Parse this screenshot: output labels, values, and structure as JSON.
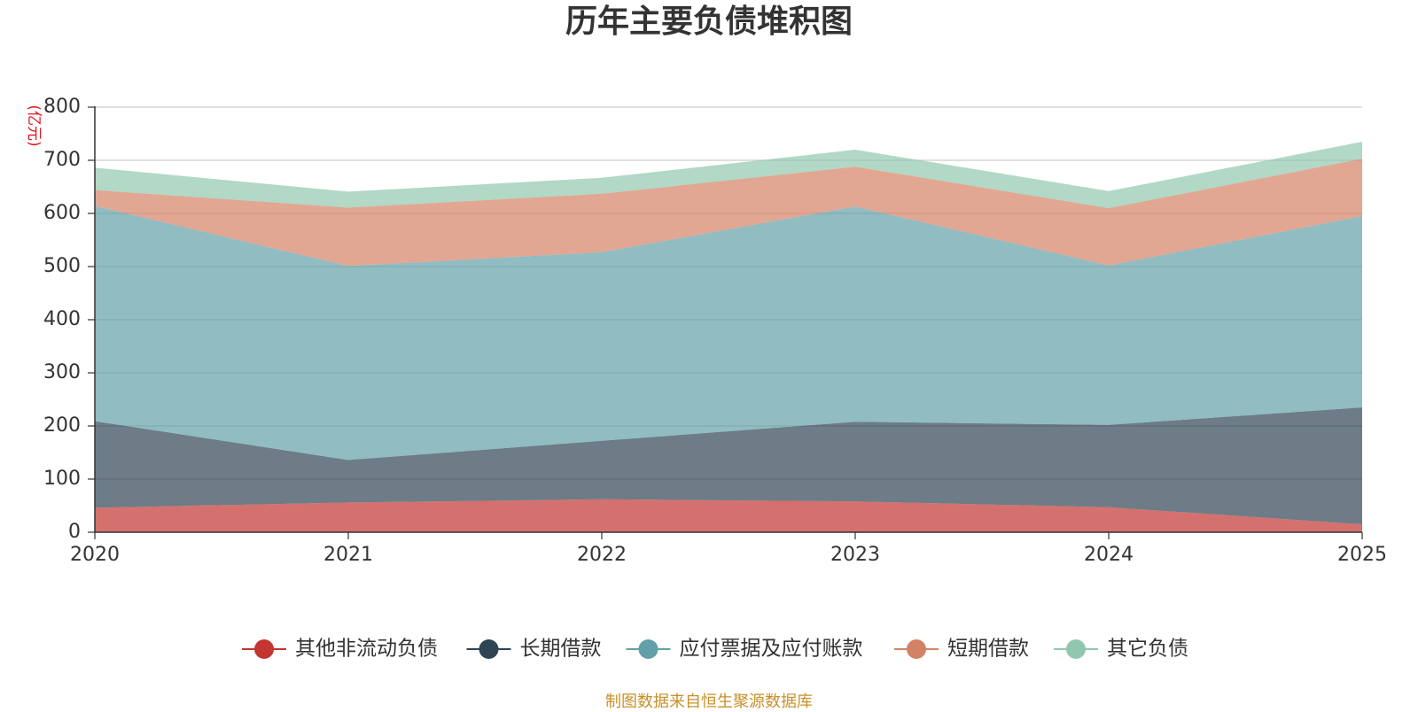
{
  "chart_data": {
    "type": "area",
    "stacked": true,
    "title": "历年主要负债堆积图",
    "unit_label": "(亿元)",
    "x": [
      "2020",
      "2021",
      "2022",
      "2023",
      "2024",
      "2025"
    ],
    "ylim": [
      0,
      800
    ],
    "yticks": [
      0,
      100,
      200,
      300,
      400,
      500,
      600,
      700,
      800
    ],
    "grid": true,
    "legend_position": "bottom",
    "series": [
      {
        "name": "其他非流动负债",
        "color": "#c23531",
        "values": [
          46,
          56,
          62,
          58,
          47,
          15
        ]
      },
      {
        "name": "长期借款",
        "color": "#2f4554",
        "values": [
          163,
          80,
          110,
          150,
          155,
          220
        ]
      },
      {
        "name": "应付票据及应付账款",
        "color": "#61a0a8",
        "values": [
          405,
          365,
          355,
          405,
          300,
          360
        ]
      },
      {
        "name": "短期借款",
        "color": "#d48265",
        "values": [
          30,
          110,
          110,
          75,
          108,
          108
        ]
      },
      {
        "name": "其它负债",
        "color": "#91c7ae",
        "values": [
          42,
          30,
          30,
          32,
          32,
          32
        ]
      }
    ]
  },
  "footer": {
    "source": "制图数据来自恒生聚源数据库"
  }
}
